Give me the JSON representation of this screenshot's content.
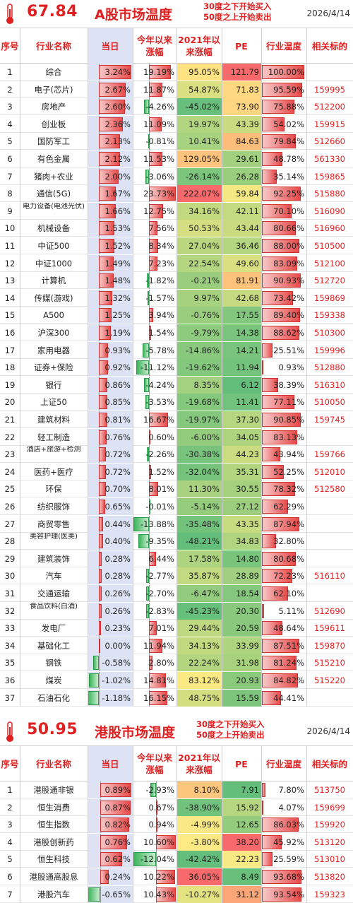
{
  "colors": {
    "accent": "#e02020",
    "code": "#e02020",
    "today_bg": "#dde3f5",
    "pos_bar": "#e84a4a",
    "neg_bar": "#3bb55a"
  },
  "a_share": {
    "score": "67.84",
    "title": "A股市场温度",
    "note_line1": "30度之下开始买入",
    "note_line2": "50度之上开始卖出",
    "date": "2026/4/14",
    "columns": {
      "idx": "序号",
      "name": "行业名称",
      "today": "当日",
      "ytd": "今年以来涨幅",
      "ret2021": "2021年以来涨幅",
      "pe": "PE",
      "temp": "行业温度",
      "code": "相关标的"
    },
    "rows": [
      {
        "idx": "1",
        "name": "综合",
        "today": 3.24,
        "today_text": "3.24%",
        "ytd": 19.19,
        "ytd_text": "19.19%",
        "ret2021": "95.05%",
        "pe": "121.79",
        "temp": 100.0,
        "temp_text": "100.00%",
        "code": ""
      },
      {
        "idx": "2",
        "name": "电子(芯片)",
        "today": 2.67,
        "today_text": "2.67%",
        "ytd": 11.87,
        "ytd_text": "11.87%",
        "ret2021": "54.87%",
        "pe": "71.83",
        "temp": 95.59,
        "temp_text": "95.59%",
        "code": "159995"
      },
      {
        "idx": "3",
        "name": "房地产",
        "today": 2.6,
        "today_text": "2.60%",
        "ytd": -4.26,
        "ytd_text": "-4.26%",
        "ret2021": "-45.02%",
        "pe": "73.90",
        "temp": 75.88,
        "temp_text": "75.88%",
        "code": "512200"
      },
      {
        "idx": "4",
        "name": "创业板",
        "today": 2.36,
        "today_text": "2.36%",
        "ytd": 11.09,
        "ytd_text": "11.09%",
        "ret2021": "19.97%",
        "pe": "43.39",
        "temp": 54.02,
        "temp_text": "54.02%",
        "code": "159915"
      },
      {
        "idx": "5",
        "name": "国防军工",
        "today": 2.13,
        "today_text": "2.13%",
        "ytd": -0.81,
        "ytd_text": "-0.81%",
        "ret2021": "10.41%",
        "pe": "84.63",
        "temp": 79.84,
        "temp_text": "79.84%",
        "code": "512660"
      },
      {
        "idx": "6",
        "name": "有色金属",
        "today": 2.12,
        "today_text": "2.12%",
        "ytd": 11.53,
        "ytd_text": "11.53%",
        "ret2021": "129.05%",
        "pe": "29.61",
        "temp": 48.78,
        "temp_text": "48.78%",
        "code": "561330"
      },
      {
        "idx": "7",
        "name": "猪肉+农业",
        "today": 2.0,
        "today_text": "2.00%",
        "ytd": -3.06,
        "ytd_text": "-3.06%",
        "ret2021": "-26.14%",
        "pe": "26.28",
        "temp": 35.14,
        "temp_text": "35.14%",
        "code": "159865"
      },
      {
        "idx": "8",
        "name": "通信(5G)",
        "today": 1.67,
        "today_text": "1.67%",
        "ytd": 23.73,
        "ytd_text": "23.73%",
        "ret2021": "222.07%",
        "pe": "59.84",
        "temp": 92.25,
        "temp_text": "92.25%",
        "code": "515880"
      },
      {
        "idx": "9",
        "name": "电力设备(电池光伏)",
        "today": 1.66,
        "today_text": "1.66%",
        "ytd": 12.75,
        "ytd_text": "12.75%",
        "ret2021": "34.16%",
        "pe": "42.11",
        "temp": 70.1,
        "temp_text": "70.10%",
        "code": "516090"
      },
      {
        "idx": "10",
        "name": "机械设备",
        "today": 1.53,
        "today_text": "1.53%",
        "ytd": 7.56,
        "ytd_text": "7.56%",
        "ret2021": "50.53%",
        "pe": "43.44",
        "temp": 80.66,
        "temp_text": "80.66%",
        "code": "516960"
      },
      {
        "idx": "11",
        "name": "中证500",
        "today": 1.52,
        "today_text": "1.52%",
        "ytd": 8.34,
        "ytd_text": "8.34%",
        "ret2021": "27.04%",
        "pe": "36.46",
        "temp": 88.0,
        "temp_text": "88.00%",
        "code": "510500"
      },
      {
        "idx": "12",
        "name": "中证1000",
        "today": 1.49,
        "today_text": "1.49%",
        "ytd": 7.23,
        "ytd_text": "7.23%",
        "ret2021": "22.54%",
        "pe": "49.60",
        "temp": 83.09,
        "temp_text": "83.09%",
        "code": "512100"
      },
      {
        "idx": "13",
        "name": "计算机",
        "today": 1.48,
        "today_text": "1.48%",
        "ytd": -1.82,
        "ytd_text": "-1.82%",
        "ret2021": "-0.21%",
        "pe": "81.91",
        "temp": 90.93,
        "temp_text": "90.93%",
        "code": "512720"
      },
      {
        "idx": "14",
        "name": "传媒(游戏)",
        "today": 1.32,
        "today_text": "1.32%",
        "ytd": -1.57,
        "ytd_text": "-1.57%",
        "ret2021": "9.97%",
        "pe": "42.68",
        "temp": 73.42,
        "temp_text": "73.42%",
        "code": "159869"
      },
      {
        "idx": "15",
        "name": "A500",
        "today": 1.25,
        "today_text": "1.25%",
        "ytd": 3.94,
        "ytd_text": "3.94%",
        "ret2021": "-0.76%",
        "pe": "17.55",
        "temp": 89.4,
        "temp_text": "89.40%",
        "code": "159338"
      },
      {
        "idx": "16",
        "name": "沪深300",
        "today": 1.19,
        "today_text": "1.19%",
        "ytd": 1.54,
        "ytd_text": "1.54%",
        "ret2021": "-9.79%",
        "pe": "14.38",
        "temp": 88.62,
        "temp_text": "88.62%",
        "code": "510300"
      },
      {
        "idx": "17",
        "name": "家用电器",
        "today": 0.93,
        "today_text": "0.93%",
        "ytd": -5.78,
        "ytd_text": "-5.78%",
        "ret2021": "-14.86%",
        "pe": "14.21",
        "temp": 25.51,
        "temp_text": "25.51%",
        "code": "159996"
      },
      {
        "idx": "18",
        "name": "证券+保险",
        "today": 0.92,
        "today_text": "0.92%",
        "ytd": -11.12,
        "ytd_text": "-11.12%",
        "ret2021": "-19.62%",
        "pe": "11.94",
        "temp": 0.93,
        "temp_text": "0.93%",
        "code": "512880"
      },
      {
        "idx": "19",
        "name": "银行",
        "today": 0.86,
        "today_text": "0.86%",
        "ytd": -4.24,
        "ytd_text": "-4.24%",
        "ret2021": "8.35%",
        "pe": "6.12",
        "temp": 38.39,
        "temp_text": "38.39%",
        "code": "516310"
      },
      {
        "idx": "20",
        "name": "上证50",
        "today": 0.85,
        "today_text": "0.85%",
        "ytd": -3.53,
        "ytd_text": "-3.53%",
        "ret2021": "-19.68%",
        "pe": "11.41",
        "temp": 77.11,
        "temp_text": "77.11%",
        "code": "510050"
      },
      {
        "idx": "21",
        "name": "建筑材料",
        "today": 0.81,
        "today_text": "0.81%",
        "ytd": 16.67,
        "ytd_text": "16.67%",
        "ret2021": "-19.97%",
        "pe": "37.30",
        "temp": 90.85,
        "temp_text": "90.85%",
        "code": "159745"
      },
      {
        "idx": "22",
        "name": "轻工制造",
        "today": 0.76,
        "today_text": "0.76%",
        "ytd": 0.6,
        "ytd_text": "0.60%",
        "ret2021": "-6.00%",
        "pe": "34.05",
        "temp": 83.13,
        "temp_text": "83.13%",
        "code": ""
      },
      {
        "idx": "23",
        "name": "酒店+旅游+检测",
        "today": 0.72,
        "today_text": "0.72%",
        "ytd": -2.26,
        "ytd_text": "-2.26%",
        "ret2021": "-30.38%",
        "pe": "44.23",
        "temp": 43.94,
        "temp_text": "43.94%",
        "code": "159766"
      },
      {
        "idx": "24",
        "name": "医药+医疗",
        "today": 0.72,
        "today_text": "0.72%",
        "ytd": 1.52,
        "ytd_text": "1.52%",
        "ret2021": "-32.04%",
        "pe": "35.31",
        "temp": 52.25,
        "temp_text": "52.25%",
        "code": "512010"
      },
      {
        "idx": "25",
        "name": "环保",
        "today": 0.7,
        "today_text": "0.70%",
        "ytd": 8.01,
        "ytd_text": "8.01%",
        "ret2021": "11.30%",
        "pe": "30.55",
        "temp": 78.32,
        "temp_text": "78.32%",
        "code": "512580"
      },
      {
        "idx": "26",
        "name": "纺织服饰",
        "today": 0.65,
        "today_text": "0.65%",
        "ytd": -0.01,
        "ytd_text": "-0.01%",
        "ret2021": "-5.14%",
        "pe": "27.12",
        "temp": 62.29,
        "temp_text": "62.29%",
        "code": ""
      },
      {
        "idx": "27",
        "name": "商贸零售",
        "today": 0.44,
        "today_text": "0.44%",
        "ytd": -13.88,
        "ytd_text": "-13.88%",
        "ret2021": "-35.48%",
        "pe": "43.35",
        "temp": 87.94,
        "temp_text": "87.94%",
        "code": ""
      },
      {
        "idx": "28",
        "name": "美容护理(医美)",
        "today": 0.4,
        "today_text": "0.40%",
        "ytd": -9.35,
        "ytd_text": "-9.35%",
        "ret2021": "-48.21%",
        "pe": "34.83",
        "temp": 32.8,
        "temp_text": "32.80%",
        "code": ""
      },
      {
        "idx": "29",
        "name": "建筑装饰",
        "today": 0.28,
        "today_text": "0.28%",
        "ytd": 6.44,
        "ytd_text": "6.44%",
        "ret2021": "17.58%",
        "pe": "14.80",
        "temp": 80.68,
        "temp_text": "80.68%",
        "code": ""
      },
      {
        "idx": "30",
        "name": "汽车",
        "today": 0.28,
        "today_text": "0.28%",
        "ytd": -2.77,
        "ytd_text": "-2.77%",
        "ret2021": "35.87%",
        "pe": "28.89",
        "temp": 72.23,
        "temp_text": "72.23%",
        "code": "516110"
      },
      {
        "idx": "31",
        "name": "交通运输",
        "today": 0.26,
        "today_text": "0.26%",
        "ytd": -2.7,
        "ytd_text": "-2.70%",
        "ret2021": "-6.47%",
        "pe": "18.54",
        "temp": 62.1,
        "temp_text": "62.10%",
        "code": ""
      },
      {
        "idx": "32",
        "name": "食品饮料(白酒)",
        "today": 0.26,
        "today_text": "0.26%",
        "ytd": -2.83,
        "ytd_text": "-2.83%",
        "ret2021": "-45.23%",
        "pe": "20.30",
        "temp": 5.11,
        "temp_text": "5.11%",
        "code": "512690"
      },
      {
        "idx": "33",
        "name": "发电厂",
        "today": 0.23,
        "today_text": "0.23%",
        "ytd": 7.01,
        "ytd_text": "7.01%",
        "ret2021": "29.44%",
        "pe": "20.59",
        "temp": 48.64,
        "temp_text": "48.64%",
        "code": "159611"
      },
      {
        "idx": "34",
        "name": "基础化工",
        "today": 0.0,
        "today_text": "0.00%",
        "ytd": 11.94,
        "ytd_text": "11.94%",
        "ret2021": "34.13%",
        "pe": "33.99",
        "temp": 87.51,
        "temp_text": "87.51%",
        "code": "159870"
      },
      {
        "idx": "35",
        "name": "钢铁",
        "today": -0.58,
        "today_text": "-0.58%",
        "ytd": 2.8,
        "ytd_text": "2.80%",
        "ret2021": "22.24%",
        "pe": "31.98",
        "temp": 81.24,
        "temp_text": "81.24%",
        "code": "515210"
      },
      {
        "idx": "36",
        "name": "煤炭",
        "today": -1.02,
        "today_text": "-1.02%",
        "ytd": 14.81,
        "ytd_text": "14.81%",
        "ret2021": "83.12%",
        "pe": "20.93",
        "temp": 84.82,
        "temp_text": "84.82%",
        "code": "515220"
      },
      {
        "idx": "37",
        "name": "石油石化",
        "today": -1.18,
        "today_text": "-1.18%",
        "ytd": 16.15,
        "ytd_text": "16.15%",
        "ret2021": "48.75%",
        "pe": "15.59",
        "temp": 44.41,
        "temp_text": "44.41%",
        "code": ""
      }
    ]
  },
  "hk": {
    "score": "50.95",
    "title": "港股市场温度",
    "note_line1": "30度之下开始买入",
    "note_line2": "50度之上开始卖出",
    "date": "2026/4/14",
    "columns": {
      "idx": "序号",
      "name": "行业名称",
      "today": "当日",
      "ytd": "今年以来涨幅",
      "ret2021": "2021年以来涨幅",
      "pe": "PE",
      "temp": "行业温度",
      "code": "相关标的"
    },
    "rows": [
      {
        "idx": "1",
        "name": "港股通非银",
        "today": 0.89,
        "today_text": "0.89%",
        "ytd": -2.93,
        "ytd_text": "-2.93%",
        "ret2021": "8.10%",
        "pe": "7.91",
        "temp": 7.8,
        "temp_text": "7.80%",
        "code": "513750"
      },
      {
        "idx": "2",
        "name": "恒生消费",
        "today": 0.87,
        "today_text": "0.87%",
        "ytd": 0.67,
        "ytd_text": "0.67%",
        "ret2021": "-38.90%",
        "pe": "15.92",
        "temp": 4.07,
        "temp_text": "4.07%",
        "code": "159699"
      },
      {
        "idx": "3",
        "name": "恒生指数",
        "today": 0.82,
        "today_text": "0.82%",
        "ytd": 0.94,
        "ytd_text": "0.94%",
        "ret2021": "-4.99%",
        "pe": "12.65",
        "temp": 86.03,
        "temp_text": "86.03%",
        "code": "159920"
      },
      {
        "idx": "4",
        "name": "港股创新药",
        "today": 0.76,
        "today_text": "0.76%",
        "ytd": 10.6,
        "ytd_text": "10.60%",
        "ret2021": "-3.80%",
        "pe": "38.20",
        "temp": 45.92,
        "temp_text": "45.92%",
        "code": "513120"
      },
      {
        "idx": "5",
        "name": "恒生科技",
        "today": 0.62,
        "today_text": "0.62%",
        "ytd": -12.04,
        "ytd_text": "-12.04%",
        "ret2021": "-42.42%",
        "pe": "22.23",
        "temp": 25.59,
        "temp_text": "25.59%",
        "code": "513010"
      },
      {
        "idx": "6",
        "name": "港股通高股息",
        "today": 0.24,
        "today_text": "0.24%",
        "ytd": 10.22,
        "ytd_text": "10.22%",
        "ret2021": "36.05%",
        "pe": "8.49",
        "temp": 93.68,
        "temp_text": "93.68%",
        "code": "513820"
      },
      {
        "idx": "7",
        "name": "港股汽车",
        "today": -0.65,
        "today_text": "-0.65%",
        "ytd": 10.43,
        "ytd_text": "10.43%",
        "ret2021": "-10.27%",
        "pe": "31.12",
        "temp": 93.54,
        "temp_text": "93.54%",
        "code": "159323"
      }
    ]
  }
}
